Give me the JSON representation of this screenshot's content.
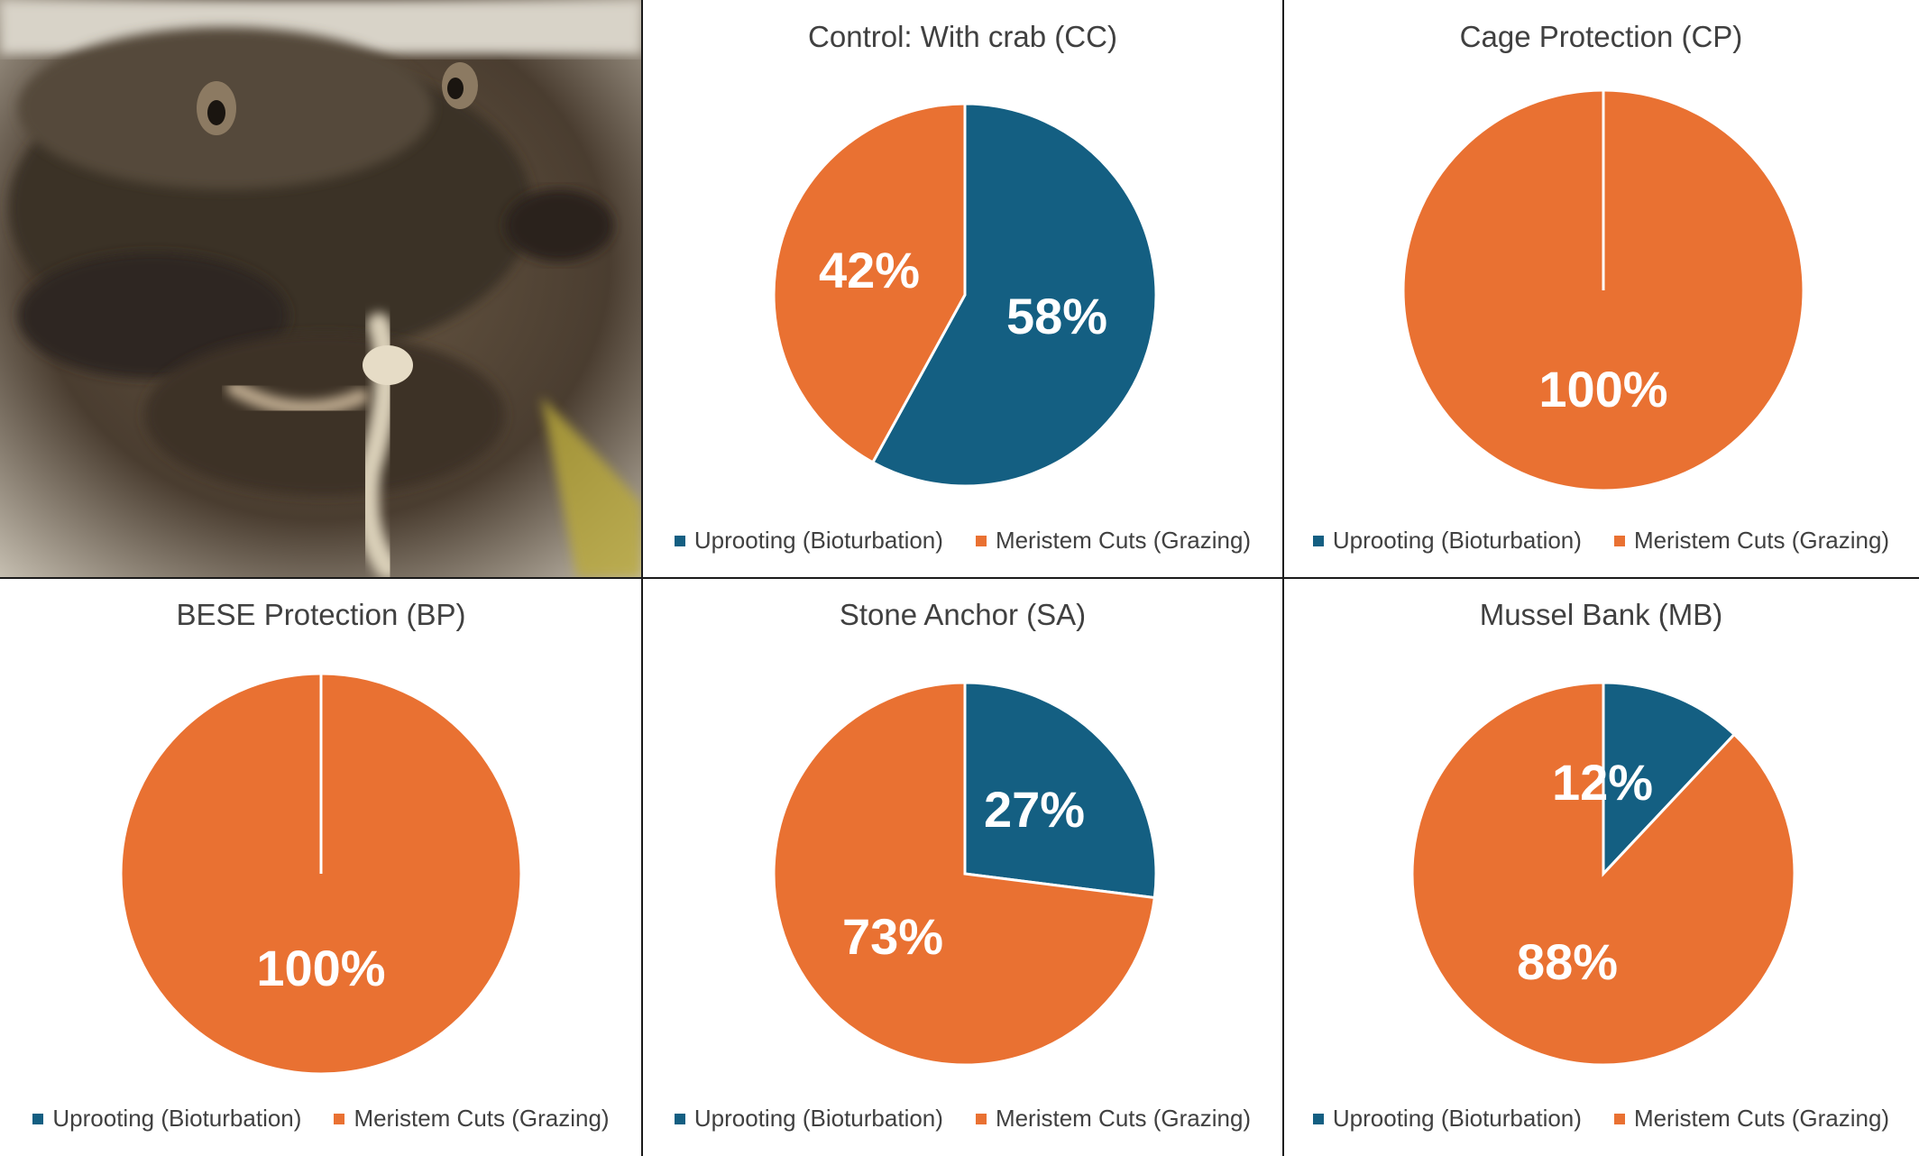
{
  "colors": {
    "uprooting": "#145F82",
    "meristem": "#E97132"
  },
  "chart_data": [
    {
      "type": "pie",
      "title": "Control: With crab (CC)",
      "categories": [
        "Uprooting (Bioturbation)",
        "Meristem Cuts (Grazing)"
      ],
      "values": [
        58,
        42
      ],
      "labels": [
        "58%",
        "42%"
      ]
    },
    {
      "type": "pie",
      "title": "Cage Protection (CP)",
      "categories": [
        "Uprooting (Bioturbation)",
        "Meristem Cuts (Grazing)"
      ],
      "values": [
        0,
        100
      ],
      "labels": [
        "",
        "100%"
      ]
    },
    {
      "type": "pie",
      "title": "BESE Protection (BP)",
      "categories": [
        "Uprooting (Bioturbation)",
        "Meristem Cuts (Grazing)"
      ],
      "values": [
        0,
        100
      ],
      "labels": [
        "",
        "100%"
      ]
    },
    {
      "type": "pie",
      "title": "Stone Anchor (SA)",
      "categories": [
        "Uprooting (Bioturbation)",
        "Meristem Cuts (Grazing)"
      ],
      "values": [
        27,
        73
      ],
      "labels": [
        "27%",
        "73%"
      ]
    },
    {
      "type": "pie",
      "title": "Mussel Bank (MB)",
      "categories": [
        "Uprooting (Bioturbation)",
        "Meristem Cuts (Grazing)"
      ],
      "values": [
        12,
        88
      ],
      "labels": [
        "12%",
        "88%"
      ]
    }
  ]
}
